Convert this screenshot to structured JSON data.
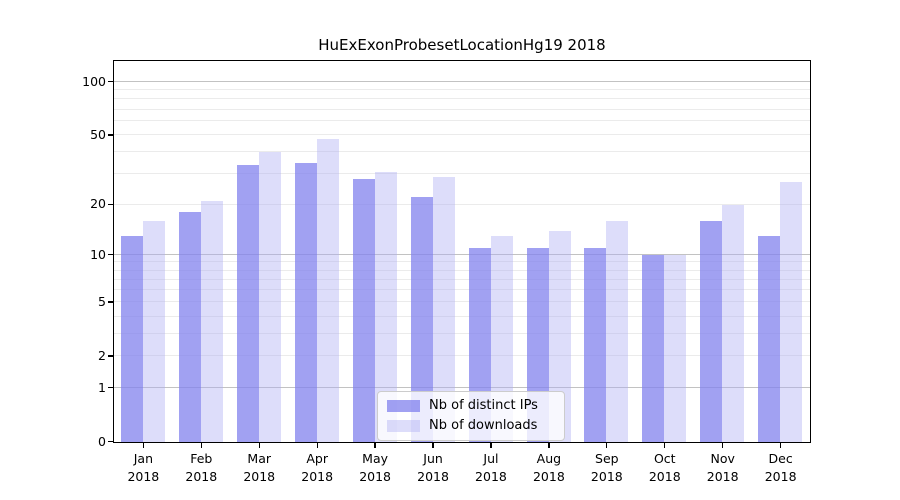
{
  "title": "HuExExonProbesetLocationHg19 2018",
  "chart_data": {
    "type": "bar",
    "title": "HuExExonProbesetLocationHg19 2018",
    "months": [
      "Jan",
      "Feb",
      "Mar",
      "Apr",
      "May",
      "Jun",
      "Jul",
      "Aug",
      "Sep",
      "Oct",
      "Nov",
      "Dec"
    ],
    "year": "2018",
    "categories": [
      "Jan 2018",
      "Feb 2018",
      "Mar 2018",
      "Apr 2018",
      "May 2018",
      "Jun 2018",
      "Jul 2018",
      "Aug 2018",
      "Sep 2018",
      "Oct 2018",
      "Nov 2018",
      "Dec 2018"
    ],
    "series": [
      {
        "name": "Nb of distinct IPs",
        "color": "rgba(130,130,238,0.75)",
        "values": [
          13,
          18,
          34,
          35,
          28,
          22,
          11,
          11,
          11,
          10,
          16,
          13
        ]
      },
      {
        "name": "Nb of downloads",
        "color": "rgba(175,175,242,0.42)",
        "values": [
          16,
          21,
          40,
          48,
          31,
          29,
          13,
          14,
          16,
          10,
          20,
          27
        ]
      }
    ],
    "yscale": "log1p",
    "ylim": [
      0,
      130
    ],
    "yticks": [
      0,
      1,
      2,
      5,
      10,
      20,
      50,
      100
    ],
    "grid_major": [
      1,
      10,
      100
    ],
    "grid_minor": [
      2,
      3,
      4,
      5,
      6,
      7,
      8,
      9,
      20,
      30,
      40,
      50,
      60,
      70,
      80,
      90
    ],
    "grid": "on",
    "legend_position": "lower center inside",
    "xlabel": "",
    "ylabel": ""
  },
  "legend": {
    "items": [
      {
        "label": "Nb of distinct IPs"
      },
      {
        "label": "Nb of downloads"
      }
    ]
  },
  "colors": {
    "bar_distinct_ips": "rgba(130,130,238,0.75)",
    "bar_downloads": "rgba(175,175,242,0.42)",
    "grid_major": "#c2c2c2",
    "grid_minor": "#ebebeb",
    "spine": "#000000",
    "legend_border": "#cccccc",
    "background": "#ffffff"
  }
}
